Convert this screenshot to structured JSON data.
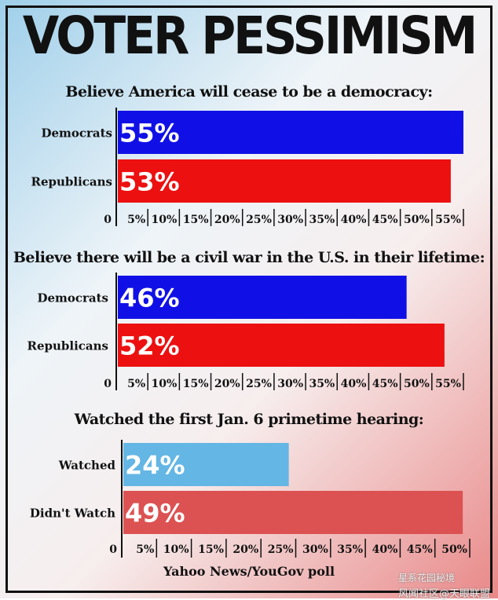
{
  "title": "VOTER PESSIMISM",
  "source": "Yahoo News/YouGov poll",
  "watermark": "风闻社区@天眼联盟",
  "watermark_logo": "星系花园秘境",
  "colors": {
    "democrat_blue": "#1010e6",
    "republican_red": "#ec1010",
    "watched_blue": "#64b6e4",
    "not_watched_red": "#dc5252",
    "text": "#111111"
  },
  "chart_data": [
    {
      "type": "bar",
      "orientation": "horizontal",
      "title": "Believe America will cease to be a democracy:",
      "categories": [
        "Democrats",
        "Republicans"
      ],
      "values": [
        55,
        53
      ],
      "value_labels": [
        "55%",
        "53%"
      ],
      "color_keys": [
        "democrat_blue",
        "republican_red"
      ],
      "xlim": [
        0,
        56
      ],
      "ticks": [
        0,
        5,
        10,
        15,
        20,
        25,
        30,
        35,
        40,
        45,
        50,
        55
      ],
      "tick_labels": [
        "0",
        "5%",
        "10%",
        "15%",
        "20%",
        "25%",
        "30%",
        "35%",
        "40%",
        "45%",
        "50%",
        "55%"
      ]
    },
    {
      "type": "bar",
      "orientation": "horizontal",
      "title": "Believe there will be a civil war in the U.S. in their lifetime:",
      "categories": [
        "Democrats",
        "Republicans"
      ],
      "values": [
        46,
        52
      ],
      "value_labels": [
        "46%",
        "52%"
      ],
      "color_keys": [
        "democrat_blue",
        "republican_red"
      ],
      "xlim": [
        0,
        56
      ],
      "ticks": [
        0,
        5,
        10,
        15,
        20,
        25,
        30,
        35,
        40,
        45,
        50,
        55
      ],
      "tick_labels": [
        "0",
        "5%",
        "10%",
        "15%",
        "20%",
        "25%",
        "30%",
        "35%",
        "40%",
        "45%",
        "50%",
        "55%"
      ]
    },
    {
      "type": "bar",
      "orientation": "horizontal",
      "title": "Watched the first Jan. 6 primetime hearing:",
      "categories": [
        "Watched",
        "Didn't Watch"
      ],
      "values": [
        24,
        49
      ],
      "value_labels": [
        "24%",
        "49%"
      ],
      "color_keys": [
        "watched_blue",
        "not_watched_red"
      ],
      "xlim": [
        0,
        50
      ],
      "ticks": [
        0,
        5,
        10,
        15,
        20,
        25,
        30,
        35,
        40,
        45,
        50
      ],
      "tick_labels": [
        "0",
        "5%",
        "10%",
        "15%",
        "20%",
        "25%",
        "30%",
        "35%",
        "40%",
        "45%",
        "50%"
      ]
    }
  ]
}
